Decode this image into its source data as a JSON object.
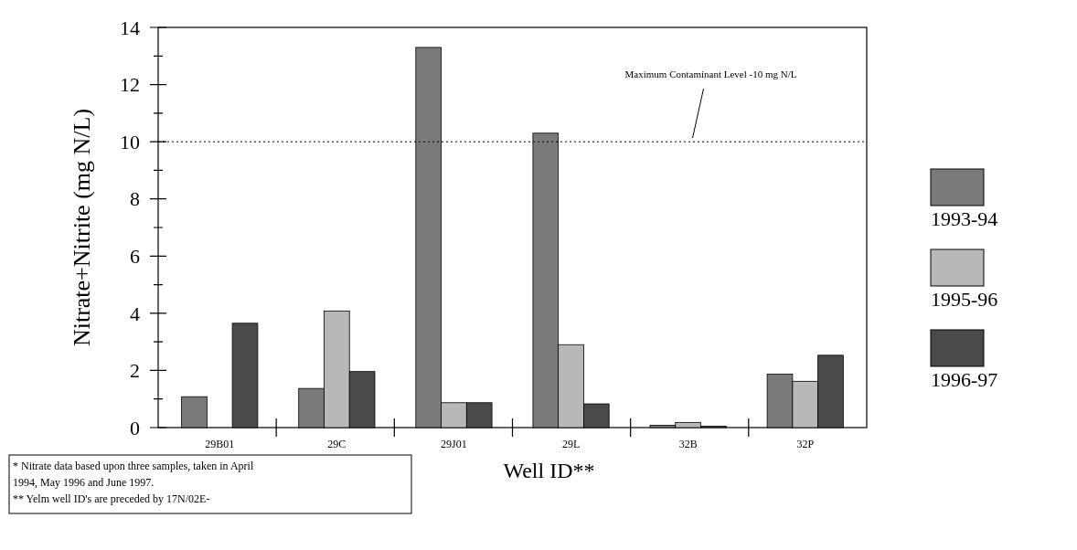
{
  "chart_data": {
    "type": "bar",
    "xlabel": "Well ID**",
    "ylabel": "Nitrate+Nitrite (mg N/L)",
    "categories": [
      "29B01",
      "29C",
      "29J01",
      "29L",
      "32B",
      "32P"
    ],
    "series": [
      {
        "name": "1993-94",
        "color": "#7a7a7a",
        "values": [
          1.08,
          1.37,
          13.3,
          10.3,
          0.08,
          1.87
        ]
      },
      {
        "name": "1995-96",
        "color": "#b8b8b8",
        "values": [
          null,
          4.08,
          0.87,
          2.9,
          0.18,
          1.62
        ]
      },
      {
        "name": "1996-97",
        "color": "#4a4a4a",
        "values": [
          3.65,
          1.96,
          0.87,
          0.83,
          0.05,
          2.53
        ]
      }
    ],
    "ylim": [
      0,
      14
    ],
    "yticks": [
      0,
      {
        "value": 1,
        "label": null
      },
      2,
      {
        "value": 3,
        "label": null
      },
      4,
      {
        "value": 5,
        "label": null
      },
      6,
      {
        "value": 7,
        "label": null
      },
      8,
      {
        "value": 9,
        "label": null
      },
      10,
      {
        "value": 11,
        "label": null
      },
      12,
      {
        "value": 13,
        "label": null
      },
      14
    ],
    "ref_lines": [
      {
        "axis": "y",
        "value": 10,
        "label": "Maximum Contaminant Level -10 mg N/L",
        "line_style": "dotted"
      }
    ],
    "annotations": [
      "* Nitrate data based upon three samples,  taken in April 1994, May 1996 and June 1997.",
      "** Yelm well ID's are preceded by 17N/02E-"
    ],
    "legend": "right",
    "grid": false
  }
}
